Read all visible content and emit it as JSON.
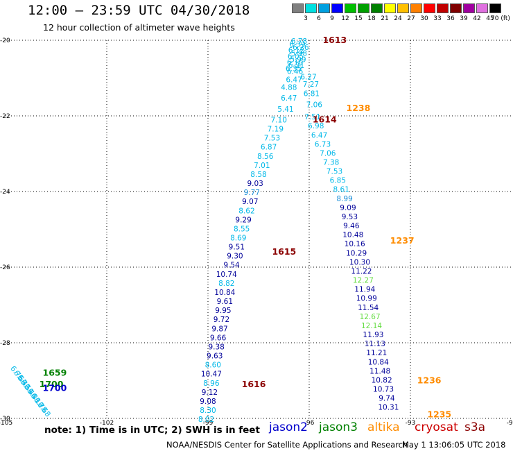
{
  "header": {
    "title": "12:00 – 23:59 UTC 04/30/2018",
    "subtitle": "12 hour collection of altimeter wave heights"
  },
  "color_scale": {
    "ticks": [
      "3",
      "6",
      "9",
      "12",
      "15",
      "18",
      "21",
      "24",
      "27",
      "30",
      "33",
      "36",
      "39",
      "42",
      "45",
      "70 (ft)"
    ],
    "colors": [
      "#808080",
      "#00e0e0",
      "#00a0e0",
      "#0000ff",
      "#00c000",
      "#00a000",
      "#008000",
      "#ffff00",
      "#ffc000",
      "#ff8000",
      "#ff0000",
      "#c00000",
      "#800000",
      "#a000a0",
      "#e070e0",
      "#000000"
    ]
  },
  "footer": {
    "note": "note:  1) Time is in UTC;  2) SWH is in feet",
    "satellites": [
      {
        "name": "jason2",
        "color": "#0000cc"
      },
      {
        "name": "jason3",
        "color": "#008000"
      },
      {
        "name": "altika",
        "color": "#ff8c00"
      },
      {
        "name": "cryosat",
        "color": "#cc0000"
      },
      {
        "name": "s3a",
        "color": "#8b0000"
      }
    ],
    "credit": "NOAA/NESDIS Center for Satellite Applications and Research",
    "timestamp": "May  1 13:06:05 UTC 2018"
  },
  "chart_data": {
    "type": "scatter",
    "title": "12:00 – 23:59 UTC 04/30/2018",
    "subtitle": "12 hour collection of altimeter wave heights",
    "xlabel": "",
    "ylabel": "",
    "xlim": [
      -105,
      -90
    ],
    "ylim": [
      -30,
      -20
    ],
    "grid": true,
    "x_ticks": [
      "-105",
      "-102",
      "-99",
      "-96",
      "-93",
      "-90"
    ],
    "y_ticks": [
      "-20",
      "-22",
      "-24",
      "-26",
      "-28",
      "-30"
    ],
    "colors": {
      "jason2": "#0000cc",
      "jason3": "#008000",
      "altika": "#ff8c00",
      "cryosat": "#cc0000",
      "s3a": "#8b0000",
      "c_light": "#00b8e8",
      "c_mid": "#1a8ed8",
      "c_dark": "#000099",
      "c_green": "#66dd44"
    },
    "time_labels": [
      {
        "text": "1613",
        "x": -95.6,
        "y": -20.0,
        "color": "s3a"
      },
      {
        "text": "1238",
        "x": -94.9,
        "y": -21.8,
        "color": "altika"
      },
      {
        "text": "1614",
        "x": -95.9,
        "y": -22.1,
        "color": "s3a"
      },
      {
        "text": "1237",
        "x": -93.6,
        "y": -25.3,
        "color": "altika"
      },
      {
        "text": "1615",
        "x": -97.1,
        "y": -25.6,
        "color": "s3a"
      },
      {
        "text": "1616",
        "x": -98.0,
        "y": -29.1,
        "color": "s3a"
      },
      {
        "text": "1236",
        "x": -92.8,
        "y": -29.0,
        "color": "altika"
      },
      {
        "text": "1235",
        "x": -92.5,
        "y": -29.9,
        "color": "altika"
      },
      {
        "text": "1659",
        "x": -103.9,
        "y": -28.8,
        "color": "jason3"
      },
      {
        "text": "1700",
        "x": -104.0,
        "y": -29.1,
        "color": "jason3"
      },
      {
        "text": "1700",
        "x": -103.9,
        "y": -29.2,
        "color": "jason2"
      }
    ],
    "tracks": [
      {
        "name": "s3a_1613_1616",
        "points": [
          {
            "x": -96.3,
            "y": -20.02,
            "v": "6.78",
            "c": "c_light"
          },
          {
            "x": -96.35,
            "y": -20.1,
            "v": "6.39",
            "c": "c_light"
          },
          {
            "x": -96.25,
            "y": -20.18,
            "v": "6.26",
            "c": "c_light"
          },
          {
            "x": -96.38,
            "y": -20.26,
            "v": "6.12",
            "c": "c_light"
          },
          {
            "x": -96.3,
            "y": -20.34,
            "v": "5.98",
            "c": "c_light"
          },
          {
            "x": -96.4,
            "y": -20.42,
            "v": "6.05",
            "c": "c_light"
          },
          {
            "x": -96.33,
            "y": -20.5,
            "v": "5.99",
            "c": "c_light"
          },
          {
            "x": -96.42,
            "y": -20.58,
            "v": "6.10",
            "c": "c_light"
          },
          {
            "x": -96.38,
            "y": -20.66,
            "v": "6.21",
            "c": "c_light"
          },
          {
            "x": -96.46,
            "y": -20.74,
            "v": "6.35",
            "c": "c_light"
          },
          {
            "x": -96.42,
            "y": -20.82,
            "v": "6.46",
            "c": "c_light"
          },
          {
            "x": -96.02,
            "y": -20.96,
            "v": "6.27",
            "c": "c_light"
          },
          {
            "x": -96.45,
            "y": -21.04,
            "v": "6.47",
            "c": "c_light"
          },
          {
            "x": -95.95,
            "y": -21.16,
            "v": "7.27",
            "c": "c_light"
          },
          {
            "x": -96.6,
            "y": -21.24,
            "v": "4.88",
            "c": "c_light"
          },
          {
            "x": -95.93,
            "y": -21.4,
            "v": "6.81",
            "c": "c_light"
          },
          {
            "x": -96.6,
            "y": -21.52,
            "v": "6.47",
            "c": "c_light"
          },
          {
            "x": -95.85,
            "y": -21.7,
            "v": "7.06",
            "c": "c_light"
          },
          {
            "x": -96.7,
            "y": -21.82,
            "v": "5.41",
            "c": "c_light"
          },
          {
            "x": -96.9,
            "y": -22.1,
            "v": "7.10",
            "c": "c_light"
          },
          {
            "x": -97.0,
            "y": -22.34,
            "v": "7.19",
            "c": "c_light"
          },
          {
            "x": -97.1,
            "y": -22.58,
            "v": "7.53",
            "c": "c_light"
          },
          {
            "x": -97.2,
            "y": -22.82,
            "v": "6.87",
            "c": "c_light"
          },
          {
            "x": -97.3,
            "y": -23.06,
            "v": "8.56",
            "c": "c_light"
          },
          {
            "x": -97.4,
            "y": -23.3,
            "v": "7.01",
            "c": "c_light"
          },
          {
            "x": -97.5,
            "y": -23.54,
            "v": "8.58",
            "c": "c_light"
          },
          {
            "x": -97.6,
            "y": -23.78,
            "v": "9.03",
            "c": "c_dark"
          },
          {
            "x": -97.7,
            "y": -24.02,
            "v": "9.77",
            "c": "c_mid"
          },
          {
            "x": -97.75,
            "y": -24.26,
            "v": "9.07",
            "c": "c_dark"
          },
          {
            "x": -97.85,
            "y": -24.5,
            "v": "8.62",
            "c": "c_light"
          },
          {
            "x": -97.95,
            "y": -24.74,
            "v": "9.29",
            "c": "c_dark"
          },
          {
            "x": -98.0,
            "y": -24.98,
            "v": "8.55",
            "c": "c_light"
          },
          {
            "x": -98.1,
            "y": -25.22,
            "v": "8.69",
            "c": "c_light"
          },
          {
            "x": -98.15,
            "y": -25.46,
            "v": "9.51",
            "c": "c_dark"
          },
          {
            "x": -98.2,
            "y": -25.7,
            "v": "9.30",
            "c": "c_dark"
          },
          {
            "x": -98.3,
            "y": -25.94,
            "v": "9.54",
            "c": "c_dark"
          },
          {
            "x": -98.45,
            "y": -26.18,
            "v": "10.74",
            "c": "c_dark"
          },
          {
            "x": -98.45,
            "y": -26.42,
            "v": "8.82",
            "c": "c_light"
          },
          {
            "x": -98.5,
            "y": -26.66,
            "v": "10.84",
            "c": "c_dark"
          },
          {
            "x": -98.5,
            "y": -26.9,
            "v": "9.61",
            "c": "c_dark"
          },
          {
            "x": -98.55,
            "y": -27.14,
            "v": "9.95",
            "c": "c_dark"
          },
          {
            "x": -98.6,
            "y": -27.38,
            "v": "9.72",
            "c": "c_dark"
          },
          {
            "x": -98.65,
            "y": -27.62,
            "v": "9.87",
            "c": "c_dark"
          },
          {
            "x": -98.7,
            "y": -27.86,
            "v": "9.66",
            "c": "c_dark"
          },
          {
            "x": -98.75,
            "y": -28.1,
            "v": "9.38",
            "c": "c_dark"
          },
          {
            "x": -98.8,
            "y": -28.34,
            "v": "9.63",
            "c": "c_dark"
          },
          {
            "x": -98.85,
            "y": -28.58,
            "v": "8.60",
            "c": "c_light"
          },
          {
            "x": -98.9,
            "y": -28.82,
            "v": "10.47",
            "c": "c_dark"
          },
          {
            "x": -98.9,
            "y": -29.06,
            "v": "8.96",
            "c": "c_light"
          },
          {
            "x": -98.95,
            "y": -29.3,
            "v": "9.12",
            "c": "c_dark"
          },
          {
            "x": -99.0,
            "y": -29.54,
            "v": "9.08",
            "c": "c_dark"
          },
          {
            "x": -99.0,
            "y": -29.78,
            "v": "8.30",
            "c": "c_light"
          },
          {
            "x": -99.05,
            "y": -30.02,
            "v": "8.02",
            "c": "c_light"
          }
        ]
      },
      {
        "name": "altika_1238_1235",
        "points": [
          {
            "x": -95.9,
            "y": -22.02,
            "v": "7.51",
            "c": "c_light"
          },
          {
            "x": -95.8,
            "y": -22.26,
            "v": "6.98",
            "c": "c_light"
          },
          {
            "x": -95.7,
            "y": -22.5,
            "v": "6.47",
            "c": "c_light"
          },
          {
            "x": -95.6,
            "y": -22.74,
            "v": "6.73",
            "c": "c_light"
          },
          {
            "x": -95.45,
            "y": -22.98,
            "v": "7.06",
            "c": "c_light"
          },
          {
            "x": -95.35,
            "y": -23.22,
            "v": "7.38",
            "c": "c_light"
          },
          {
            "x": -95.25,
            "y": -23.46,
            "v": "7.53",
            "c": "c_light"
          },
          {
            "x": -95.15,
            "y": -23.7,
            "v": "6.85",
            "c": "c_light"
          },
          {
            "x": -95.05,
            "y": -23.94,
            "v": "8.61",
            "c": "c_light"
          },
          {
            "x": -94.95,
            "y": -24.18,
            "v": "8.99",
            "c": "c_mid"
          },
          {
            "x": -94.85,
            "y": -24.42,
            "v": "9.09",
            "c": "c_dark"
          },
          {
            "x": -94.8,
            "y": -24.66,
            "v": "9.53",
            "c": "c_dark"
          },
          {
            "x": -94.75,
            "y": -24.9,
            "v": "9.46",
            "c": "c_dark"
          },
          {
            "x": -94.7,
            "y": -25.14,
            "v": "10.48",
            "c": "c_dark"
          },
          {
            "x": -94.65,
            "y": -25.38,
            "v": "10.16",
            "c": "c_dark"
          },
          {
            "x": -94.6,
            "y": -25.62,
            "v": "10.29",
            "c": "c_dark"
          },
          {
            "x": -94.5,
            "y": -25.86,
            "v": "10.30",
            "c": "c_dark"
          },
          {
            "x": -94.45,
            "y": -26.1,
            "v": "11.22",
            "c": "c_dark"
          },
          {
            "x": -94.4,
            "y": -26.34,
            "v": "12.27",
            "c": "c_green"
          },
          {
            "x": -94.35,
            "y": -26.58,
            "v": "11.94",
            "c": "c_dark"
          },
          {
            "x": -94.3,
            "y": -26.82,
            "v": "10.99",
            "c": "c_dark"
          },
          {
            "x": -94.25,
            "y": -27.06,
            "v": "11.54",
            "c": "c_dark"
          },
          {
            "x": -94.2,
            "y": -27.3,
            "v": "12.67",
            "c": "c_green"
          },
          {
            "x": -94.15,
            "y": -27.54,
            "v": "12.14",
            "c": "c_green"
          },
          {
            "x": -94.1,
            "y": -27.78,
            "v": "11.93",
            "c": "c_dark"
          },
          {
            "x": -94.05,
            "y": -28.02,
            "v": "11.13",
            "c": "c_dark"
          },
          {
            "x": -94.0,
            "y": -28.26,
            "v": "11.21",
            "c": "c_dark"
          },
          {
            "x": -93.95,
            "y": -28.5,
            "v": "10.84",
            "c": "c_dark"
          },
          {
            "x": -93.9,
            "y": -28.74,
            "v": "11.48",
            "c": "c_dark"
          },
          {
            "x": -93.85,
            "y": -28.98,
            "v": "10.82",
            "c": "c_dark"
          },
          {
            "x": -93.8,
            "y": -29.22,
            "v": "10.73",
            "c": "c_dark"
          },
          {
            "x": -93.7,
            "y": -29.46,
            "v": "9.74",
            "c": "c_dark"
          },
          {
            "x": -93.65,
            "y": -29.7,
            "v": "10.31",
            "c": "c_dark"
          }
        ]
      },
      {
        "name": "jason_1659_1700",
        "points": [
          {
            "x": -104.65,
            "y": -28.8,
            "v": "6.75",
            "c": "c_light"
          },
          {
            "x": -104.55,
            "y": -28.92,
            "v": "6.63",
            "c": "c_light"
          },
          {
            "x": -104.45,
            "y": -29.04,
            "v": "6.42",
            "c": "c_light"
          },
          {
            "x": -104.35,
            "y": -29.16,
            "v": "6.51",
            "c": "c_light"
          },
          {
            "x": -104.25,
            "y": -29.28,
            "v": "6.44",
            "c": "c_light"
          },
          {
            "x": -104.15,
            "y": -29.4,
            "v": "6.31",
            "c": "c_light"
          },
          {
            "x": -104.05,
            "y": -29.52,
            "v": "6.12",
            "c": "c_light"
          },
          {
            "x": -103.95,
            "y": -29.64,
            "v": "6.78",
            "c": "c_light"
          },
          {
            "x": -103.85,
            "y": -29.76,
            "v": "6.68",
            "c": "c_light"
          }
        ]
      }
    ]
  }
}
